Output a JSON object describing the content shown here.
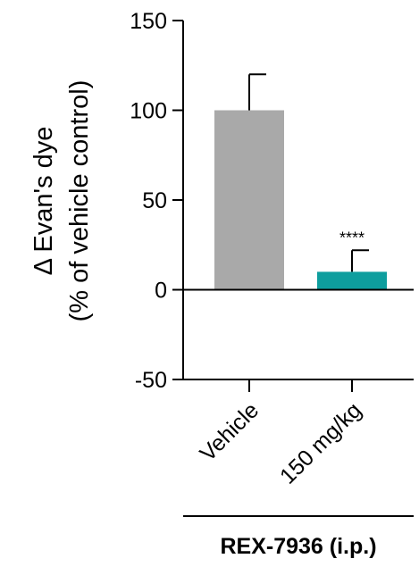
{
  "chart_data": {
    "type": "bar",
    "categories": [
      "Vehicle",
      "150 mg/kg"
    ],
    "values": [
      100,
      10
    ],
    "error_upper": [
      120,
      22
    ],
    "colors": [
      "#A9A9A9",
      "#0E9E9E"
    ],
    "significance": [
      "",
      "****"
    ],
    "ylabel_line1": "Δ Evan's dye",
    "ylabel_line2": "(% of vehicle control)",
    "ylim": [
      -50,
      150
    ],
    "yticks": [
      150,
      100,
      50,
      0,
      -50
    ],
    "ytick_labels": [
      "150",
      "100",
      "50",
      "0",
      "-50"
    ],
    "group_label": "REX-7936 (i.p.)",
    "grid": false
  }
}
